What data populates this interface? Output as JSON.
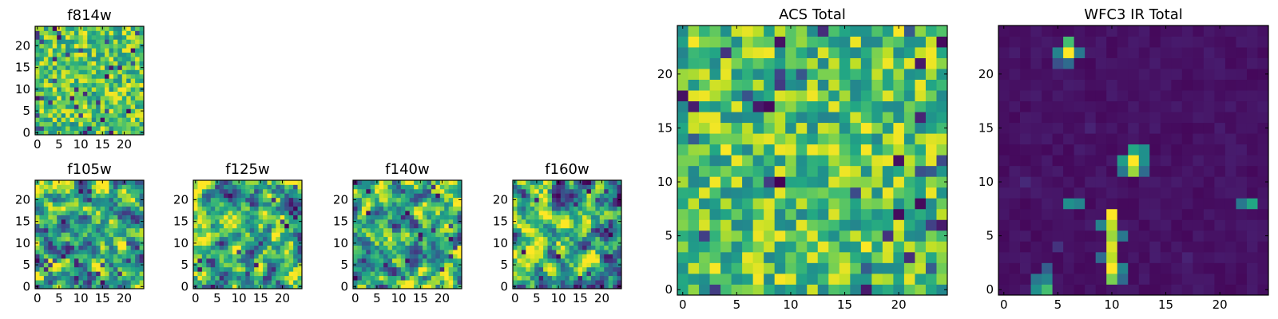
{
  "chart_data": [
    {
      "type": "heatmap",
      "title": "f814w",
      "x_ticks": [
        "0",
        "5",
        "10",
        "15",
        "20"
      ],
      "y_ticks": [
        "0",
        "5",
        "10",
        "15",
        "20"
      ],
      "xlim": [
        -0.5,
        24.5
      ],
      "ylim": [
        -0.5,
        24.5
      ],
      "grid": [
        25,
        25
      ],
      "colormap": "viridis",
      "pattern": "noise",
      "seed": 11
    },
    {
      "type": "heatmap",
      "title": "f105w",
      "x_ticks": [
        "0",
        "5",
        "10",
        "15",
        "20"
      ],
      "y_ticks": [
        "0",
        "5",
        "10",
        "15",
        "20"
      ],
      "xlim": [
        -0.5,
        24.5
      ],
      "ylim": [
        -0.5,
        24.5
      ],
      "grid": [
        25,
        25
      ],
      "colormap": "viridis",
      "pattern": "smooth",
      "seed": 23
    },
    {
      "type": "heatmap",
      "title": "f125w",
      "x_ticks": [
        "0",
        "5",
        "10",
        "15",
        "20"
      ],
      "y_ticks": [
        "0",
        "5",
        "10",
        "15",
        "20"
      ],
      "xlim": [
        -0.5,
        24.5
      ],
      "ylim": [
        -0.5,
        24.5
      ],
      "grid": [
        25,
        25
      ],
      "colormap": "viridis",
      "pattern": "smooth",
      "seed": 37
    },
    {
      "type": "heatmap",
      "title": "f140w",
      "x_ticks": [
        "0",
        "5",
        "10",
        "15",
        "20"
      ],
      "y_ticks": [
        "0",
        "5",
        "10",
        "15",
        "20"
      ],
      "xlim": [
        -0.5,
        24.5
      ],
      "ylim": [
        -0.5,
        24.5
      ],
      "grid": [
        25,
        25
      ],
      "colormap": "viridis",
      "pattern": "smooth",
      "seed": 41
    },
    {
      "type": "heatmap",
      "title": "f160w",
      "x_ticks": [
        "0",
        "5",
        "10",
        "15",
        "20"
      ],
      "y_ticks": [
        "0",
        "5",
        "10",
        "15",
        "20"
      ],
      "xlim": [
        -0.5,
        24.5
      ],
      "ylim": [
        -0.5,
        24.5
      ],
      "grid": [
        25,
        25
      ],
      "colormap": "viridis",
      "pattern": "smooth",
      "seed": 53
    },
    {
      "type": "heatmap",
      "title": "ACS Total",
      "x_ticks": [
        "0",
        "5",
        "10",
        "15",
        "20"
      ],
      "y_ticks": [
        "0",
        "5",
        "10",
        "15",
        "20"
      ],
      "xlim": [
        -0.5,
        24.5
      ],
      "ylim": [
        -0.5,
        24.5
      ],
      "grid": [
        25,
        25
      ],
      "colormap": "viridis",
      "pattern": "noise",
      "seed": 67
    },
    {
      "type": "heatmap",
      "title": "WFC3 IR Total",
      "x_ticks": [
        "0",
        "5",
        "10",
        "15",
        "20"
      ],
      "y_ticks": [
        "0",
        "5",
        "10",
        "15",
        "20"
      ],
      "xlim": [
        -0.5,
        24.5
      ],
      "ylim": [
        -0.5,
        24.5
      ],
      "grid": [
        25,
        25
      ],
      "colormap": "viridis",
      "pattern": "sources",
      "seed": 79,
      "sources": [
        {
          "x": 6,
          "y": 22,
          "value": 1.0
        },
        {
          "x": 6,
          "y": 23,
          "value": 0.7
        },
        {
          "x": 5,
          "y": 22,
          "value": 0.45
        },
        {
          "x": 7,
          "y": 22,
          "value": 0.4
        },
        {
          "x": 6,
          "y": 21,
          "value": 0.35
        },
        {
          "x": 5,
          "y": 21,
          "value": 0.25
        },
        {
          "x": 12,
          "y": 12,
          "value": 1.0
        },
        {
          "x": 12,
          "y": 11,
          "value": 0.85
        },
        {
          "x": 12,
          "y": 13,
          "value": 0.6
        },
        {
          "x": 11,
          "y": 12,
          "value": 0.55
        },
        {
          "x": 13,
          "y": 12,
          "value": 0.5
        },
        {
          "x": 13,
          "y": 13,
          "value": 0.5
        },
        {
          "x": 11,
          "y": 11,
          "value": 0.4
        },
        {
          "x": 13,
          "y": 11,
          "value": 0.35
        },
        {
          "x": 10,
          "y": 7,
          "value": 1.0
        },
        {
          "x": 10,
          "y": 6,
          "value": 0.9
        },
        {
          "x": 10,
          "y": 5,
          "value": 0.85
        },
        {
          "x": 10,
          "y": 4,
          "value": 0.95
        },
        {
          "x": 10,
          "y": 3,
          "value": 0.9
        },
        {
          "x": 10,
          "y": 2,
          "value": 1.0
        },
        {
          "x": 10,
          "y": 1,
          "value": 0.8
        },
        {
          "x": 9,
          "y": 6,
          "value": 0.45
        },
        {
          "x": 9,
          "y": 3,
          "value": 0.35
        },
        {
          "x": 11,
          "y": 5,
          "value": 0.4
        },
        {
          "x": 11,
          "y": 2,
          "value": 0.45
        },
        {
          "x": 11,
          "y": 1,
          "value": 0.35
        },
        {
          "x": 4,
          "y": 0,
          "value": 0.7
        },
        {
          "x": 3,
          "y": 0,
          "value": 0.5
        },
        {
          "x": 4,
          "y": 1,
          "value": 0.45
        },
        {
          "x": 3,
          "y": 1,
          "value": 0.4
        },
        {
          "x": 4,
          "y": 2,
          "value": 0.3
        },
        {
          "x": 6,
          "y": 8,
          "value": 0.5
        },
        {
          "x": 7,
          "y": 8,
          "value": 0.45
        },
        {
          "x": 23,
          "y": 8,
          "value": 0.6
        },
        {
          "x": 22,
          "y": 8,
          "value": 0.4
        },
        {
          "x": 5,
          "y": 4,
          "value": 0.15
        },
        {
          "x": 8,
          "y": 15,
          "value": 0.1
        },
        {
          "x": 2,
          "y": 10,
          "value": 0.12
        },
        {
          "x": 17,
          "y": 3,
          "value": 0.1
        }
      ]
    }
  ]
}
